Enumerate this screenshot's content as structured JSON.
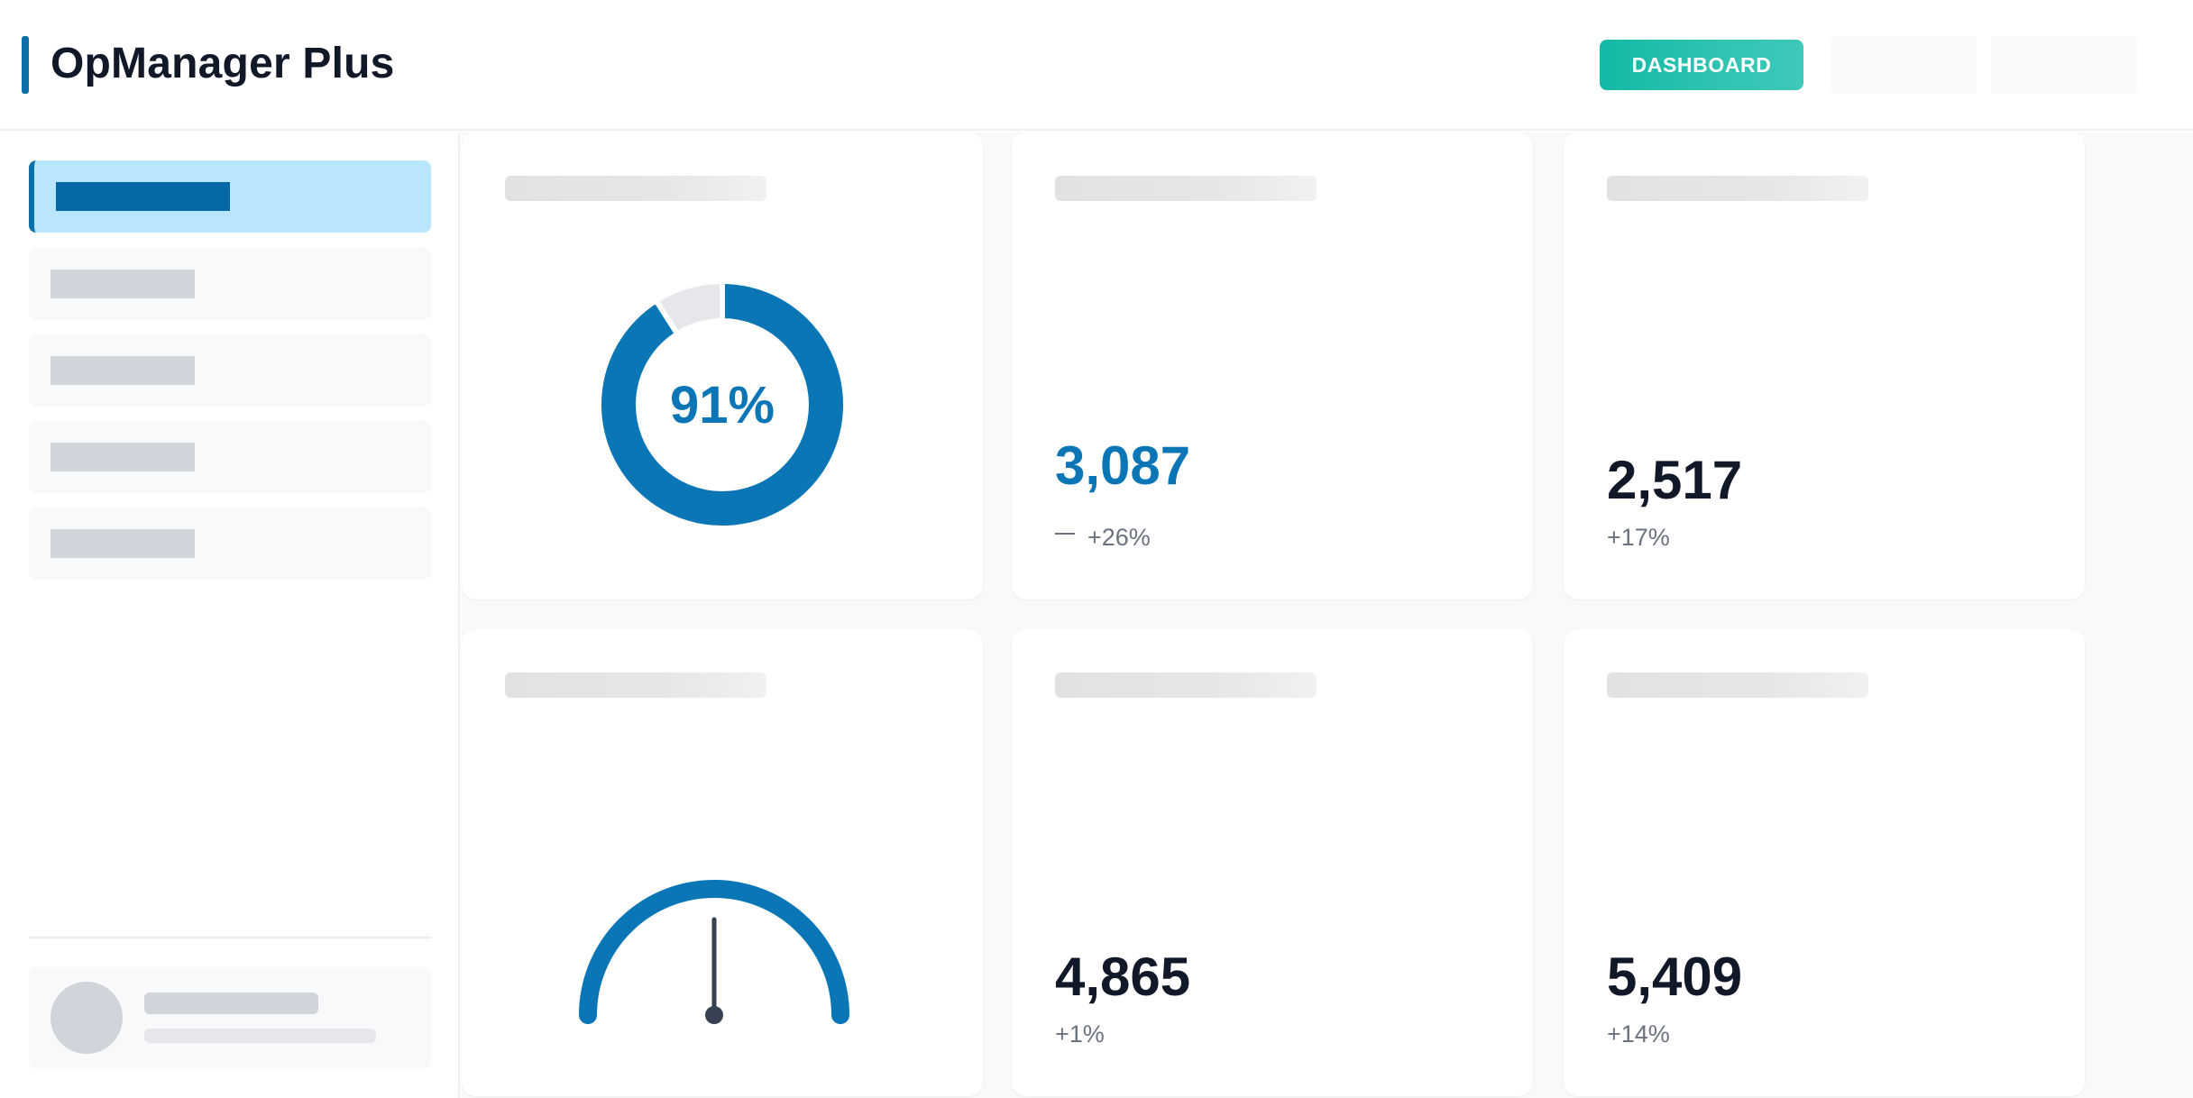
{
  "app": {
    "title": "OpManager Plus"
  },
  "header": {
    "dashboard_button": "DASHBOARD"
  },
  "colors": {
    "brand": "#0b6fa8",
    "accent_teal": "#14b8a6",
    "primary_blue": "#0b76b6",
    "nav_active_bg": "#bae6fd"
  },
  "icons": {
    "trend": "minus-trend-icon",
    "avatar": "user-avatar-icon"
  },
  "cards": {
    "availability": {
      "percent_label": "91%",
      "percent_value": 91
    },
    "metric_1": {
      "value": "3,087",
      "change": "+26%"
    },
    "metric_2": {
      "value": "2,517",
      "change": "+17%"
    },
    "gauge": {
      "level": 0.5
    },
    "metric_3": {
      "value": "4,865",
      "change": "+1%"
    },
    "metric_4": {
      "value": "5,409",
      "change": "+14%"
    }
  }
}
